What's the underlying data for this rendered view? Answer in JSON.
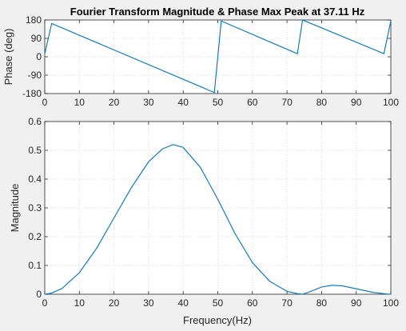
{
  "chart_data": [
    {
      "type": "line",
      "title": "Fourier Transform Magnitude & Phase  Max Peak at     37.11 Hz",
      "xlabel": "",
      "ylabel": "Phase (deg)",
      "xlim": [
        0,
        100
      ],
      "ylim": [
        -180,
        180
      ],
      "xticks": [
        "0",
        "10",
        "20",
        "30",
        "40",
        "50",
        "60",
        "70",
        "80",
        "90",
        "100"
      ],
      "yticks": [
        "-180",
        "-90",
        "0",
        "90",
        "180"
      ],
      "grid": true,
      "series": [
        {
          "color": "#0072bd",
          "x": [
            0,
            2,
            49,
            49,
            51,
            73,
            73,
            74.5,
            98,
            98,
            100
          ],
          "y": [
            15,
            163,
            -175,
            -175,
            175,
            15,
            15,
            180,
            15,
            15,
            175
          ]
        }
      ]
    },
    {
      "type": "line",
      "title": "",
      "xlabel": "Frequency(Hz)",
      "ylabel": "Magnitude",
      "xlim": [
        0,
        100
      ],
      "ylim": [
        0,
        0.6
      ],
      "xticks": [
        "0",
        "10",
        "20",
        "30",
        "40",
        "50",
        "60",
        "70",
        "80",
        "90",
        "100"
      ],
      "yticks": [
        "0",
        "0.1",
        "0.2",
        "0.3",
        "0.4",
        "0.5",
        "0.6"
      ],
      "grid": true,
      "series": [
        {
          "color": "#0072bd",
          "x": [
            0,
            2,
            5,
            10,
            15,
            20,
            25,
            30,
            34,
            37.11,
            40,
            45,
            50,
            55,
            60,
            65,
            70,
            73,
            74.5,
            76,
            80,
            83,
            86,
            90,
            95,
            99,
            100
          ],
          "y": [
            0,
            0.004,
            0.02,
            0.075,
            0.16,
            0.265,
            0.37,
            0.46,
            0.505,
            0.52,
            0.51,
            0.44,
            0.33,
            0.21,
            0.11,
            0.045,
            0.01,
            0.002,
            0.0,
            0.006,
            0.025,
            0.031,
            0.029,
            0.019,
            0.006,
            0.0005,
            0.0
          ]
        }
      ]
    }
  ]
}
